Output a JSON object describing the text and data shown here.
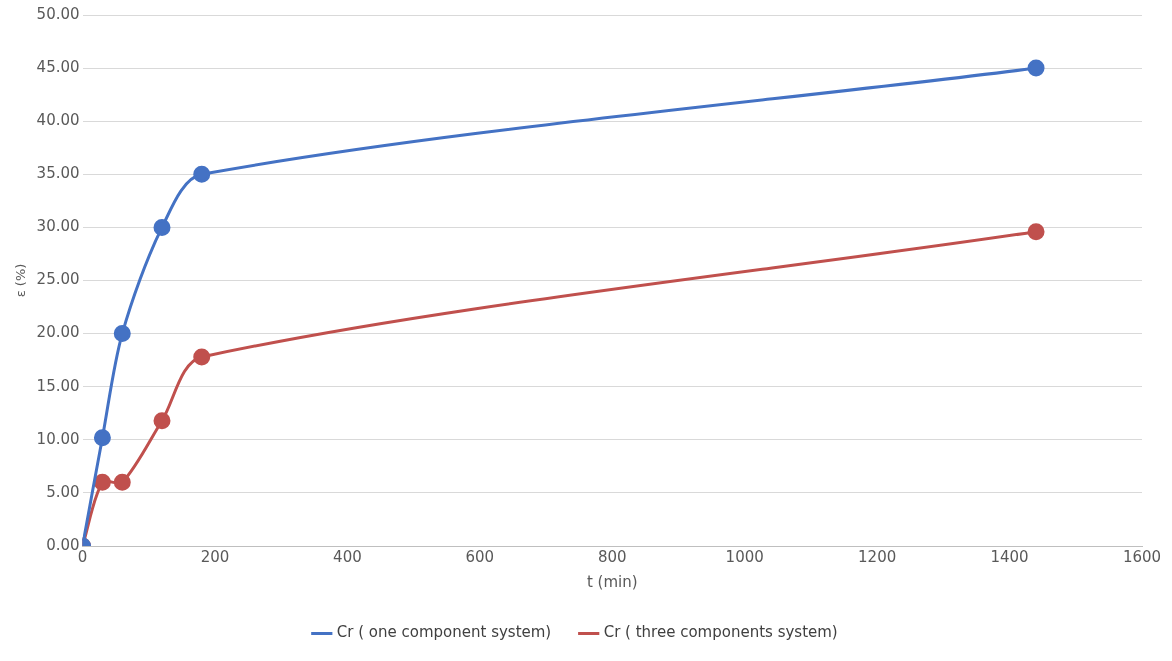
{
  "chart_data": {
    "type": "line",
    "xlabel": "t (min)",
    "ylabel": "ε (%)",
    "x": [
      0,
      30,
      60,
      120,
      180,
      1440
    ],
    "series": [
      {
        "name": "Cr ( one component system)",
        "color": "#4472c4",
        "values": [
          0,
          10.2,
          20,
          30,
          35,
          45
        ]
      },
      {
        "name": "Cr ( three components system)",
        "color": "#c0504d",
        "values": [
          0,
          6,
          6,
          11.8,
          17.8,
          29.6
        ]
      }
    ],
    "xlim": [
      0,
      1600
    ],
    "xticks": [
      0,
      200,
      400,
      600,
      800,
      1000,
      1200,
      1400,
      1600
    ],
    "ylim": [
      0,
      50
    ],
    "yticks": [
      {
        "value": 0,
        "label": "0.00"
      },
      {
        "value": 5,
        "label": "5.00"
      },
      {
        "value": 10,
        "label": "10.00"
      },
      {
        "value": 15,
        "label": "15.00"
      },
      {
        "value": 20,
        "label": "20.00"
      },
      {
        "value": 25,
        "label": "25.00"
      },
      {
        "value": 30,
        "label": "30.00"
      },
      {
        "value": 35,
        "label": "35.00"
      },
      {
        "value": 40,
        "label": "40.00"
      },
      {
        "value": 45,
        "label": "45.00"
      },
      {
        "value": 50,
        "label": "50.00"
      }
    ],
    "grid": "y",
    "legend": "bottom",
    "marker": "circle",
    "line_style": "solid"
  }
}
